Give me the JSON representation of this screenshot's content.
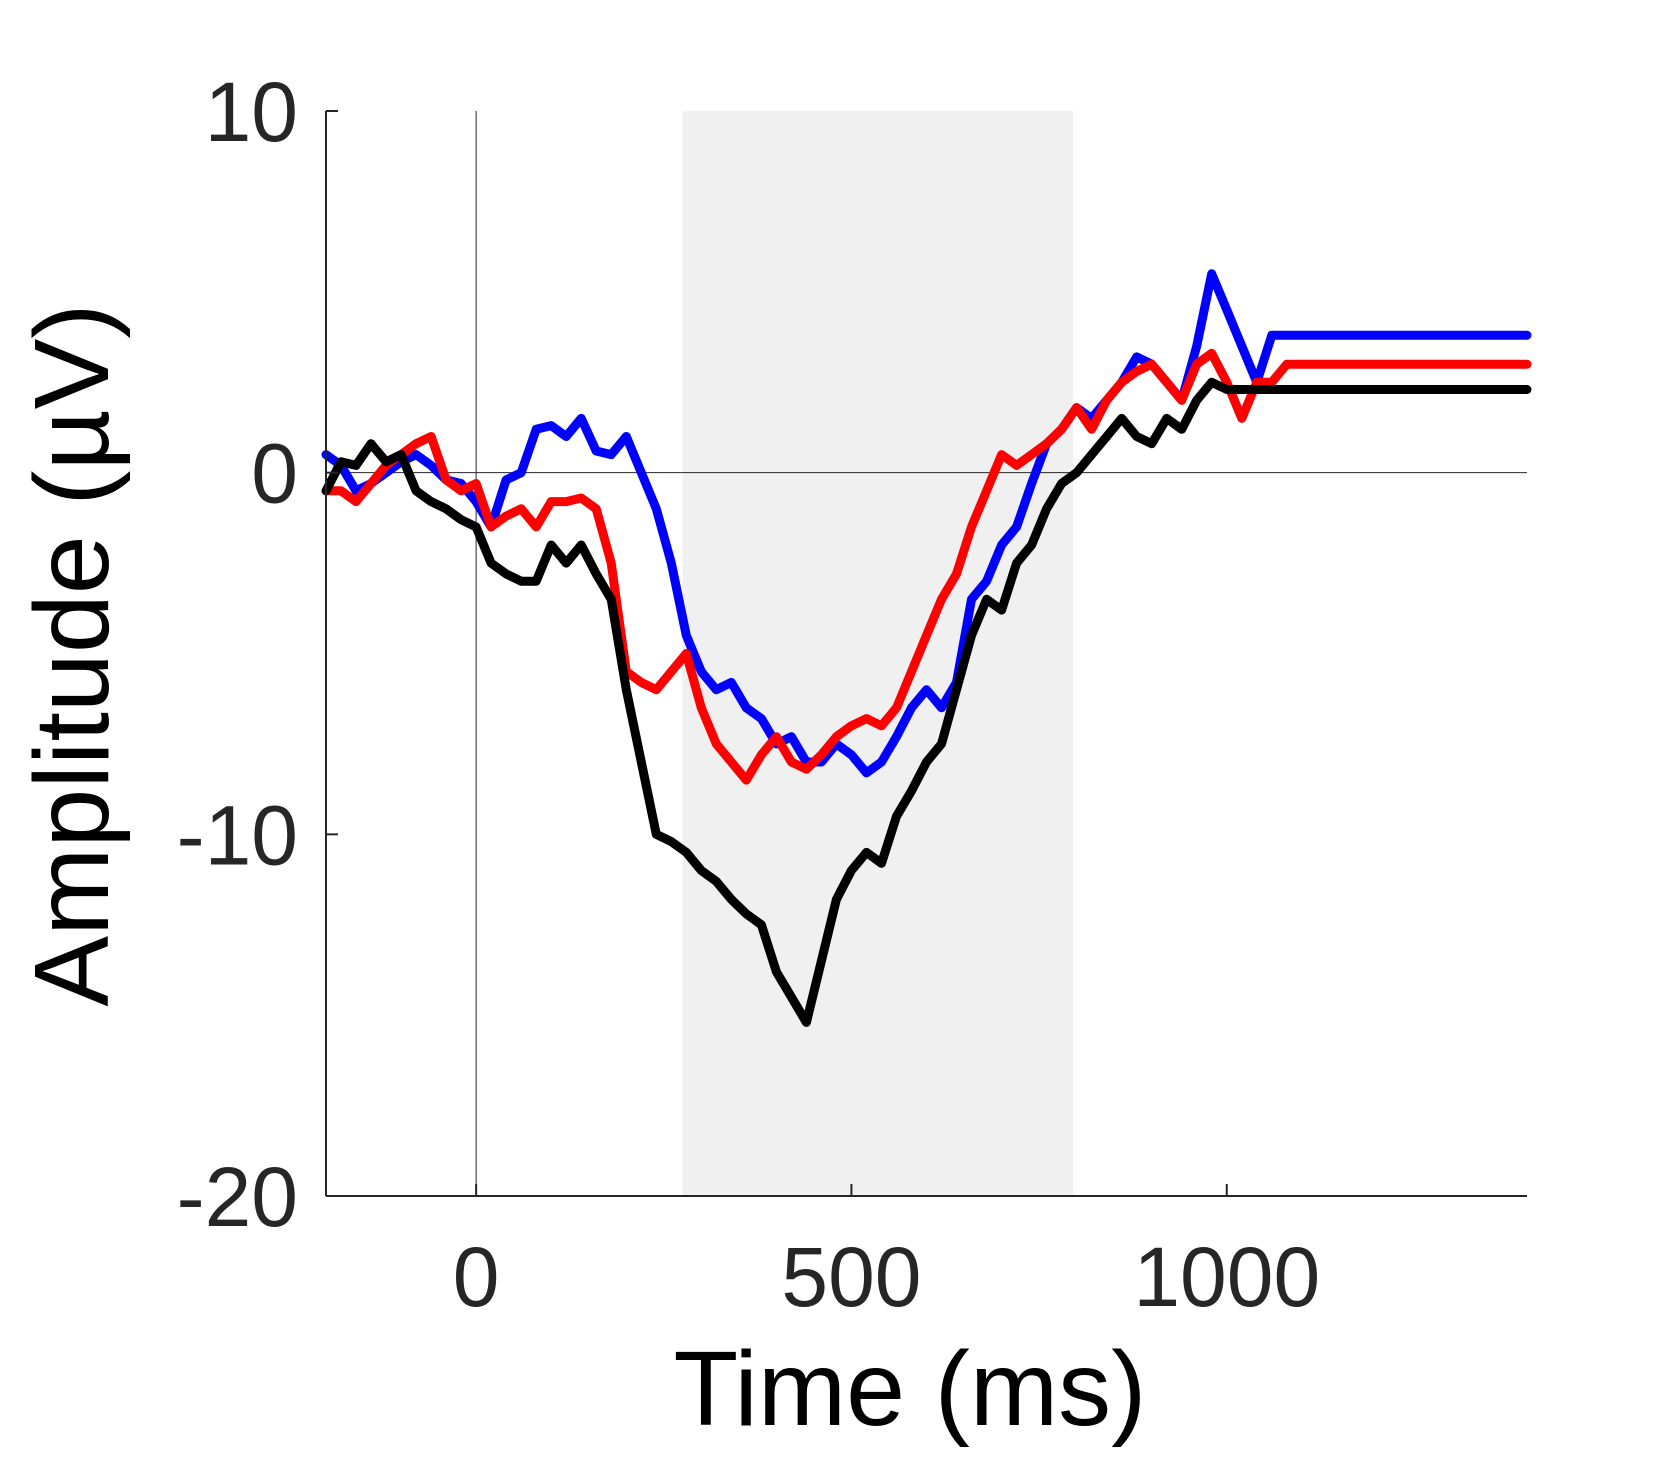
{
  "chart_data": {
    "type": "line",
    "xlabel": "Time (ms)",
    "ylabel": "Amplitude (µV)",
    "xlim": [
      -200,
      1400
    ],
    "ylim": [
      -20,
      10
    ],
    "xticks": [
      0,
      500,
      1000
    ],
    "yticks": [
      -20,
      -10,
      0,
      10
    ],
    "xtick_labels": [
      "0",
      "500",
      "1000"
    ],
    "ytick_labels": [
      "-20",
      "-10",
      "0",
      "10"
    ],
    "highlight_window": {
      "x_start": 275,
      "x_end": 795,
      "color": "#f0f0f0"
    },
    "reference_lines": {
      "x": 0,
      "y": 0
    },
    "grid": false,
    "legend": "none",
    "series": [
      {
        "color": "#0000ff",
        "x": [
          -200,
          -180,
          -160,
          -140,
          -120,
          -100,
          -80,
          -60,
          -40,
          -20,
          0,
          20,
          40,
          60,
          80,
          100,
          120,
          140,
          160,
          180,
          200,
          220,
          240,
          260,
          280,
          300,
          320,
          340,
          360,
          380,
          400,
          420,
          440,
          460,
          480,
          500,
          520,
          540,
          560,
          580,
          600,
          620,
          640,
          660,
          680,
          700,
          720,
          740,
          760,
          780,
          800,
          820,
          840,
          860,
          880,
          900,
          920,
          940,
          960,
          980,
          1000,
          1020,
          1040,
          1060,
          1080,
          1100,
          1120,
          1140,
          1160,
          1180,
          1200,
          1220,
          1240,
          1260,
          1280,
          1300,
          1320,
          1340,
          1360,
          1380,
          1400
        ],
        "y": [
          0.5,
          0.2,
          -0.5,
          -0.3,
          0.0,
          0.3,
          0.5,
          0.2,
          -0.2,
          -0.3,
          -0.8,
          -1.5,
          -0.2,
          0.0,
          1.2,
          1.3,
          1.0,
          1.5,
          0.6,
          0.5,
          1.0,
          0.0,
          -1.0,
          -2.5,
          -4.5,
          -5.5,
          -6.0,
          -5.8,
          -6.5,
          -6.8,
          -7.5,
          -7.3,
          -8.0,
          -8.0,
          -7.5,
          -7.8,
          -8.3,
          -8.0,
          -7.3,
          -6.5,
          -6.0,
          -6.5,
          -5.8,
          -3.5,
          -3.0,
          -2.0,
          -1.5,
          -0.3,
          0.8,
          1.2,
          1.8,
          1.5,
          2.0,
          2.5,
          3.2,
          3.0,
          2.5,
          2.0,
          3.5,
          5.5,
          4.5,
          3.5,
          2.5,
          3.8,
          3.8,
          3.8,
          3.8,
          3.8,
          3.8,
          3.8,
          3.8,
          3.8,
          3.8,
          3.8,
          3.8,
          3.8,
          3.8,
          3.8,
          3.8,
          3.8,
          3.8
        ]
      },
      {
        "color": "#ff0000",
        "x": [
          -200,
          -180,
          -160,
          -140,
          -120,
          -100,
          -80,
          -60,
          -40,
          -20,
          0,
          20,
          40,
          60,
          80,
          100,
          120,
          140,
          160,
          180,
          200,
          220,
          240,
          260,
          280,
          300,
          320,
          340,
          360,
          380,
          400,
          420,
          440,
          460,
          480,
          500,
          520,
          540,
          560,
          580,
          600,
          620,
          640,
          660,
          680,
          700,
          720,
          740,
          760,
          780,
          800,
          820,
          840,
          860,
          880,
          900,
          920,
          940,
          960,
          980,
          1000,
          1020,
          1040,
          1060,
          1080,
          1100,
          1120,
          1140,
          1160,
          1180,
          1200,
          1220,
          1240,
          1260,
          1280,
          1300,
          1320,
          1340,
          1360,
          1380,
          1400
        ],
        "y": [
          -0.5,
          -0.5,
          -0.8,
          -0.3,
          0.2,
          0.5,
          0.8,
          1.0,
          -0.2,
          -0.5,
          -0.3,
          -1.5,
          -1.2,
          -1.0,
          -1.5,
          -0.8,
          -0.8,
          -0.7,
          -1.0,
          -2.5,
          -5.5,
          -5.8,
          -6.0,
          -5.5,
          -5.0,
          -6.5,
          -7.5,
          -8.0,
          -8.5,
          -7.8,
          -7.3,
          -8.0,
          -8.2,
          -7.8,
          -7.3,
          -7.0,
          -6.8,
          -7.0,
          -6.5,
          -5.5,
          -4.5,
          -3.5,
          -2.8,
          -1.5,
          -0.5,
          0.5,
          0.2,
          0.5,
          0.8,
          1.2,
          1.8,
          1.2,
          2.0,
          2.5,
          2.8,
          3.0,
          2.5,
          2.0,
          3.0,
          3.3,
          2.5,
          1.5,
          2.5,
          2.5,
          3.0,
          3.0,
          3.0,
          3.0,
          3.0,
          3.0,
          3.0,
          3.0,
          3.0,
          3.0,
          3.0,
          3.0,
          3.0,
          3.0,
          3.0,
          3.0,
          3.0
        ]
      },
      {
        "color": "#000000",
        "x": [
          -200,
          -180,
          -160,
          -140,
          -120,
          -100,
          -80,
          -60,
          -40,
          -20,
          0,
          20,
          40,
          60,
          80,
          100,
          120,
          140,
          160,
          180,
          200,
          220,
          240,
          260,
          280,
          300,
          320,
          340,
          360,
          380,
          400,
          420,
          440,
          460,
          480,
          500,
          520,
          540,
          560,
          580,
          600,
          620,
          640,
          660,
          680,
          700,
          720,
          740,
          760,
          780,
          800,
          820,
          840,
          860,
          880,
          900,
          920,
          940,
          960,
          980,
          1000,
          1020,
          1040,
          1060,
          1080,
          1100,
          1120,
          1140,
          1160,
          1180,
          1200,
          1220,
          1240,
          1260,
          1280,
          1300,
          1320,
          1340,
          1360,
          1380,
          1400
        ],
        "y": [
          -0.5,
          0.3,
          0.2,
          0.8,
          0.3,
          0.5,
          -0.5,
          -0.8,
          -1.0,
          -1.3,
          -1.5,
          -2.5,
          -2.8,
          -3.0,
          -3.0,
          -2.0,
          -2.5,
          -2.0,
          -2.8,
          -3.5,
          -6.0,
          -8.0,
          -10.0,
          -10.2,
          -10.5,
          -11.0,
          -11.3,
          -11.8,
          -12.2,
          -12.5,
          -13.8,
          -14.5,
          -15.2,
          -13.5,
          -11.8,
          -11.0,
          -10.5,
          -10.8,
          -9.5,
          -8.8,
          -8.0,
          -7.5,
          -6.0,
          -4.5,
          -3.5,
          -3.8,
          -2.5,
          -2.0,
          -1.0,
          -0.3,
          0.0,
          0.5,
          1.0,
          1.5,
          1.0,
          0.8,
          1.5,
          1.2,
          2.0,
          2.5,
          2.3,
          2.3,
          2.3,
          2.3,
          2.3,
          2.3,
          2.3,
          2.3,
          2.3,
          2.3,
          2.3,
          2.3,
          2.3,
          2.3,
          2.3,
          2.3,
          2.3,
          2.3,
          2.3,
          2.3,
          2.3
        ]
      }
    ]
  }
}
